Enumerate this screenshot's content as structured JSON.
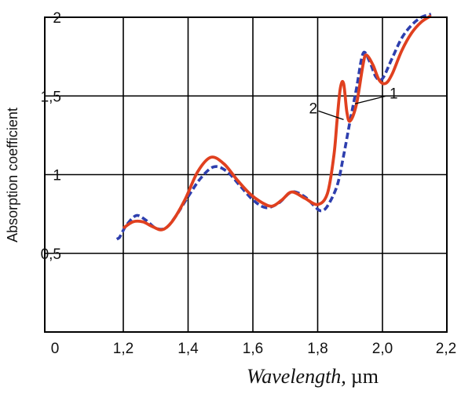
{
  "chart_data": {
    "type": "line",
    "xlabel": {
      "italic": "Wavelength,",
      "unit": "µm"
    },
    "ylabel": "Absorption coefficient",
    "xlim": [
      0,
      2.2
    ],
    "ylim": [
      0,
      2
    ],
    "grid": true,
    "x_ticks": [
      {
        "value": 0,
        "label": "0"
      },
      {
        "value": 1.2,
        "label": "1,2"
      },
      {
        "value": 1.4,
        "label": "1,4"
      },
      {
        "value": 1.6,
        "label": "1,6"
      },
      {
        "value": 1.8,
        "label": "1,8"
      },
      {
        "value": 2.0,
        "label": "2,0"
      },
      {
        "value": 2.2,
        "label": "2,2"
      }
    ],
    "y_ticks": [
      {
        "value": 0.5,
        "label": "0,5"
      },
      {
        "value": 1,
        "label": "1"
      },
      {
        "value": 1.5,
        "label": "1,5"
      },
      {
        "value": 2,
        "label": "2"
      }
    ],
    "series": [
      {
        "name": "1",
        "color": "#2e3fae",
        "style": "dashed",
        "points": [
          [
            1.1,
            0.59
          ],
          [
            1.14,
            0.6
          ],
          [
            1.18,
            0.63
          ],
          [
            1.21,
            0.68
          ],
          [
            1.24,
            0.74
          ],
          [
            1.27,
            0.71
          ],
          [
            1.3,
            0.66
          ],
          [
            1.33,
            0.66
          ],
          [
            1.36,
            0.73
          ],
          [
            1.4,
            0.86
          ],
          [
            1.44,
            0.98
          ],
          [
            1.48,
            1.05
          ],
          [
            1.52,
            1.02
          ],
          [
            1.56,
            0.93
          ],
          [
            1.6,
            0.84
          ],
          [
            1.64,
            0.79
          ],
          [
            1.68,
            0.82
          ],
          [
            1.72,
            0.89
          ],
          [
            1.76,
            0.86
          ],
          [
            1.79,
            0.8
          ],
          [
            1.81,
            0.77
          ],
          [
            1.83,
            0.8
          ],
          [
            1.86,
            0.93
          ],
          [
            1.88,
            1.12
          ],
          [
            1.9,
            1.34
          ],
          [
            1.92,
            1.55
          ],
          [
            1.94,
            1.77
          ],
          [
            1.96,
            1.72
          ],
          [
            1.98,
            1.62
          ],
          [
            2.0,
            1.61
          ],
          [
            2.03,
            1.74
          ],
          [
            2.06,
            1.87
          ],
          [
            2.09,
            1.95
          ],
          [
            2.12,
            2.0
          ],
          [
            2.15,
            2.02
          ]
        ]
      },
      {
        "name": "2",
        "color": "#e0401f",
        "style": "solid",
        "points": [
          [
            1.2,
            0.66
          ],
          [
            1.23,
            0.7
          ],
          [
            1.26,
            0.7
          ],
          [
            1.29,
            0.67
          ],
          [
            1.32,
            0.65
          ],
          [
            1.35,
            0.7
          ],
          [
            1.39,
            0.84
          ],
          [
            1.43,
            1.02
          ],
          [
            1.47,
            1.11
          ],
          [
            1.51,
            1.07
          ],
          [
            1.55,
            0.97
          ],
          [
            1.59,
            0.88
          ],
          [
            1.63,
            0.82
          ],
          [
            1.66,
            0.8
          ],
          [
            1.69,
            0.84
          ],
          [
            1.72,
            0.89
          ],
          [
            1.76,
            0.85
          ],
          [
            1.8,
            0.81
          ],
          [
            1.83,
            0.88
          ],
          [
            1.85,
            1.12
          ],
          [
            1.86,
            1.35
          ],
          [
            1.87,
            1.55
          ],
          [
            1.88,
            1.58
          ],
          [
            1.89,
            1.4
          ],
          [
            1.9,
            1.34
          ],
          [
            1.92,
            1.45
          ],
          [
            1.94,
            1.7
          ],
          [
            1.95,
            1.76
          ],
          [
            1.97,
            1.7
          ],
          [
            1.99,
            1.6
          ],
          [
            2.01,
            1.58
          ],
          [
            2.03,
            1.64
          ],
          [
            2.06,
            1.79
          ],
          [
            2.09,
            1.9
          ],
          [
            2.12,
            1.97
          ],
          [
            2.15,
            2.01
          ]
        ]
      }
    ],
    "annotations": [
      {
        "text": "1",
        "series": "1",
        "point": [
          1.915,
          1.45
        ]
      },
      {
        "text": "2",
        "series": "2",
        "point": [
          1.88,
          1.35
        ]
      }
    ]
  }
}
